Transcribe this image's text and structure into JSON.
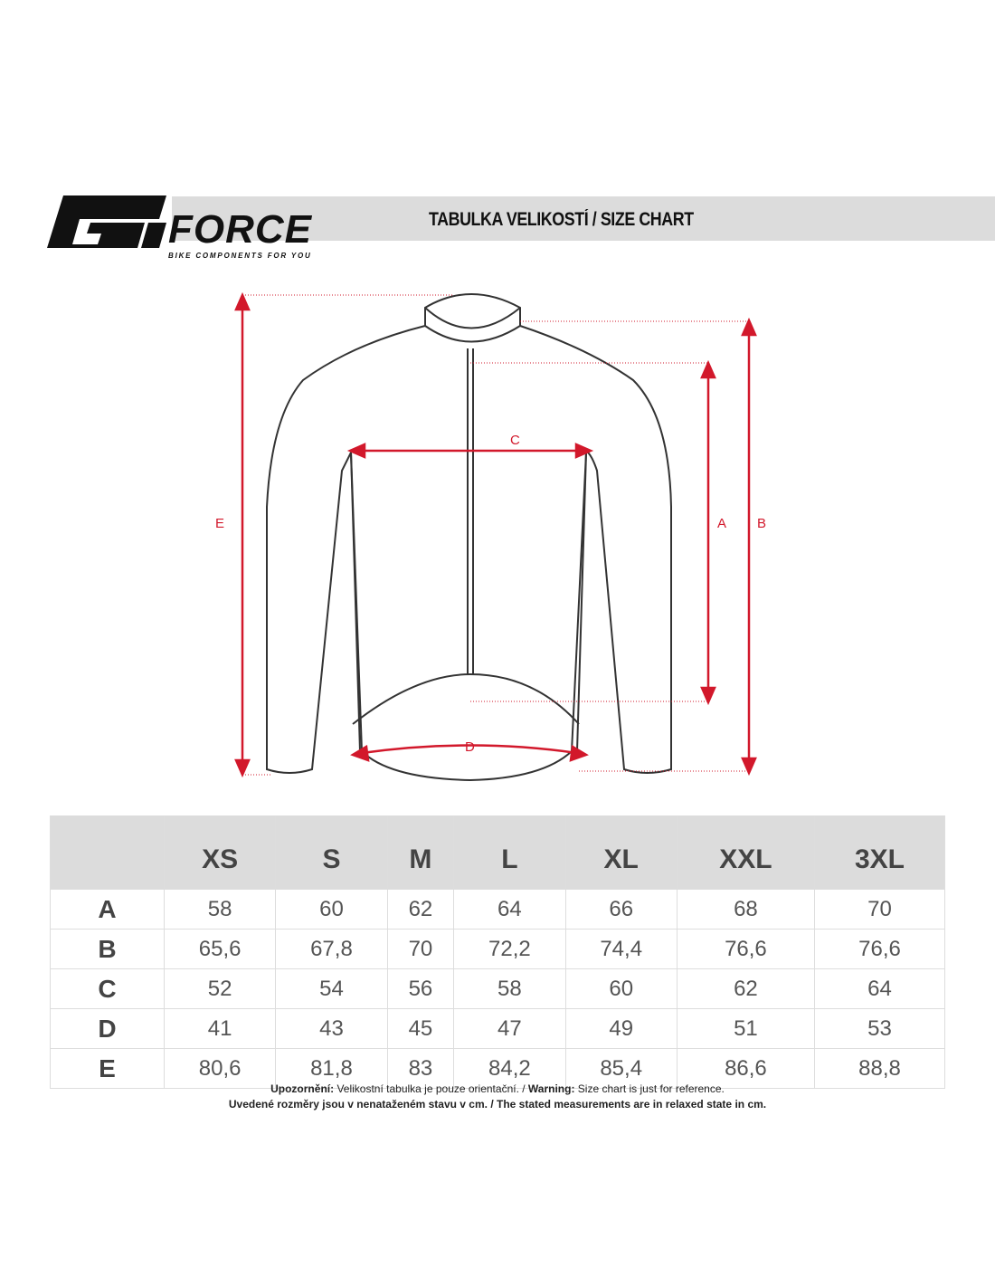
{
  "header": {
    "brand": "FORCE",
    "tagline": "BIKE COMPONENTS FOR YOU",
    "title": "TABULKA VELIKOSTÍ / SIZE CHART"
  },
  "diagram": {
    "labels": {
      "A": "A",
      "B": "B",
      "C": "C",
      "D": "D",
      "E": "E"
    },
    "arrow_color": "#d2182b",
    "outline_color": "#333333"
  },
  "table": {
    "columns": [
      "XS",
      "S",
      "M",
      "L",
      "XL",
      "XXL",
      "3XL"
    ],
    "rows": [
      {
        "label": "A",
        "values": [
          "58",
          "60",
          "62",
          "64",
          "66",
          "68",
          "70"
        ]
      },
      {
        "label": "B",
        "values": [
          "65,6",
          "67,8",
          "70",
          "72,2",
          "74,4",
          "76,6",
          "76,6"
        ]
      },
      {
        "label": "C",
        "values": [
          "52",
          "54",
          "56",
          "58",
          "60",
          "62",
          "64"
        ]
      },
      {
        "label": "D",
        "values": [
          "41",
          "43",
          "45",
          "47",
          "49",
          "51",
          "53"
        ]
      },
      {
        "label": "E",
        "values": [
          "80,6",
          "81,8",
          "83",
          "84,2",
          "85,4",
          "86,6",
          "88,8"
        ]
      }
    ]
  },
  "notes": {
    "line1_bold1": "Upozornění:",
    "line1_text1": " Velikostní tabulka je pouze orientační. / ",
    "line1_bold2": "Warning:",
    "line1_text2": " Size chart is just for reference.",
    "line2": "Uvedené rozměry jsou v nenataženém stavu v cm. / The stated measurements are in relaxed state in cm."
  }
}
